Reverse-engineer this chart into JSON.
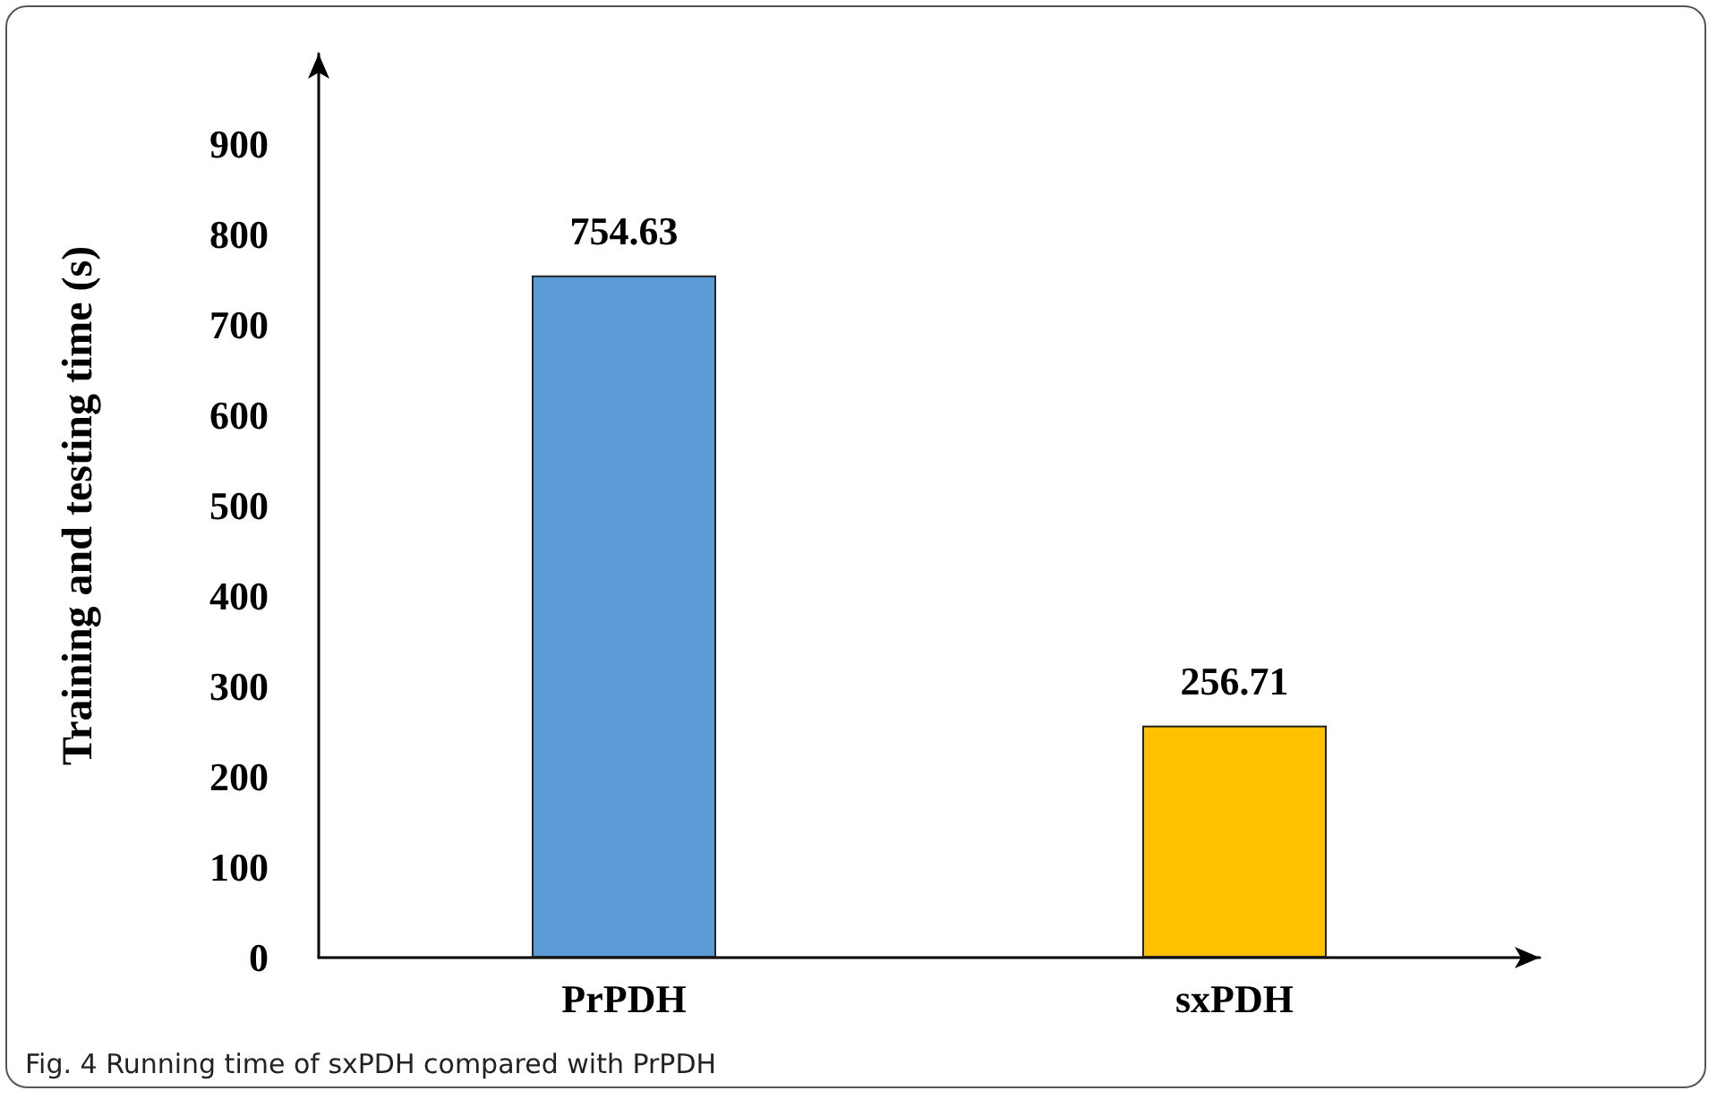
{
  "chart_data": {
    "type": "bar",
    "ylabel": "Training and testing time (s)",
    "categories": [
      "PrPDH",
      "sxPDH"
    ],
    "values": [
      754.63,
      256.71
    ],
    "colors": [
      "#5b9bd5",
      "#ffc000"
    ],
    "ylim": [
      0,
      1000
    ],
    "yticks": [
      0,
      100,
      200,
      300,
      400,
      500,
      600,
      700,
      800,
      900
    ],
    "data_labels": true,
    "annotations": [
      "Fig. 4 Running time of sxPDH compared with PrPDH"
    ]
  }
}
